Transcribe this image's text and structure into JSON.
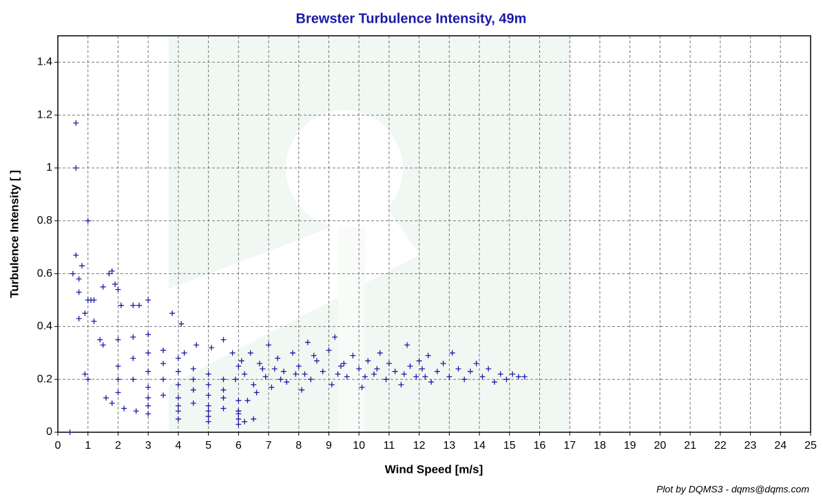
{
  "chart_data": {
    "type": "scatter",
    "title": "Brewster Turbulence Intensity, 49m",
    "x_label": "Wind Speed [m/s]",
    "y_label": "Turbulence Intensity [ ]",
    "footer": "Plot by DQMS3 - dqms@dqms.com",
    "color": "#1a1aa6",
    "marker": "plus",
    "grid": true,
    "xlim": [
      0,
      25
    ],
    "ylim": [
      0,
      1.5
    ],
    "xticks": [
      0,
      1,
      2,
      3,
      4,
      5,
      6,
      7,
      8,
      9,
      10,
      11,
      12,
      13,
      14,
      15,
      16,
      17,
      18,
      19,
      20,
      21,
      22,
      23,
      24,
      25
    ],
    "yticks": [
      0,
      0.2,
      0.4,
      0.6,
      0.8,
      1,
      1.2,
      1.4
    ],
    "x": [
      0.6,
      0.6,
      1.0,
      0.6,
      0.5,
      0.7,
      0.8,
      0.7,
      0.7,
      0.9,
      0.9,
      1.0,
      1.0,
      1.1,
      1.2,
      1.2,
      1.4,
      1.5,
      1.7,
      1.8,
      1.9,
      2.0,
      2.1,
      2.5,
      2.7,
      3.0,
      3.8,
      4.1,
      0.4,
      3,
      4,
      5,
      6,
      2,
      3,
      4,
      5,
      6,
      2,
      3,
      4,
      5,
      6,
      1.5,
      2,
      2.5,
      3,
      3.5,
      4,
      4.5,
      5,
      5.5,
      6,
      2,
      2.5,
      3,
      3.5,
      4,
      4.5,
      5,
      5.5,
      6,
      2.5,
      3,
      3.5,
      4,
      4.5,
      5,
      5.5,
      3,
      3.5,
      4,
      4.5,
      5,
      5.5,
      1.6,
      1.8,
      2.2,
      2.6,
      4.2,
      4.6,
      5.1,
      5.5,
      5.8,
      6.0,
      6.2,
      6.4,
      6.5,
      6.7,
      6.9,
      7.0,
      7.1,
      7.3,
      7.5,
      7.6,
      7.8,
      8.0,
      8.1,
      8.3,
      8.4,
      8.6,
      8.8,
      9.0,
      9.1,
      9.2,
      9.4,
      9.6,
      9.8,
      10.0,
      10.1,
      10.3,
      10.5,
      10.7,
      10.9,
      11.0,
      11.2,
      11.4,
      11.6,
      11.7,
      11.9,
      12.1,
      12.3,
      12.4,
      12.6,
      12.8,
      13.0,
      13.1,
      13.3,
      13.5,
      13.7,
      13.9,
      14.1,
      14.3,
      14.5,
      14.7,
      14.9,
      15.1,
      15.3,
      15.5,
      6.6,
      7.2,
      7.9,
      8.5,
      9.5,
      10.6,
      11.5,
      12.0,
      12.2,
      8.2,
      9.3,
      10.2,
      6.8,
      7.4,
      5.9,
      6.1,
      6.3,
      6.0,
      6.5,
      6.2
    ],
    "values": [
      1.17,
      1.0,
      0.8,
      0.67,
      0.6,
      0.58,
      0.63,
      0.53,
      0.43,
      0.45,
      0.22,
      0.2,
      0.5,
      0.5,
      0.5,
      0.42,
      0.35,
      0.55,
      0.6,
      0.61,
      0.56,
      0.54,
      0.48,
      0.48,
      0.48,
      0.5,
      0.45,
      0.41,
      0.0,
      0.07,
      0.05,
      0.04,
      0.03,
      0.15,
      0.1,
      0.08,
      0.06,
      0.05,
      0.2,
      0.13,
      0.1,
      0.08,
      0.07,
      0.33,
      0.25,
      0.2,
      0.17,
      0.14,
      0.13,
      0.11,
      0.1,
      0.09,
      0.08,
      0.35,
      0.28,
      0.23,
      0.2,
      0.18,
      0.16,
      0.14,
      0.13,
      0.12,
      0.36,
      0.3,
      0.26,
      0.23,
      0.2,
      0.18,
      0.16,
      0.37,
      0.31,
      0.28,
      0.24,
      0.22,
      0.2,
      0.13,
      0.11,
      0.09,
      0.08,
      0.3,
      0.33,
      0.32,
      0.35,
      0.3,
      0.25,
      0.22,
      0.3,
      0.18,
      0.26,
      0.21,
      0.33,
      0.17,
      0.28,
      0.23,
      0.19,
      0.3,
      0.25,
      0.16,
      0.34,
      0.2,
      0.27,
      0.23,
      0.31,
      0.18,
      0.36,
      0.25,
      0.21,
      0.29,
      0.24,
      0.17,
      0.27,
      0.22,
      0.3,
      0.2,
      0.26,
      0.23,
      0.18,
      0.33,
      0.25,
      0.21,
      0.24,
      0.29,
      0.19,
      0.23,
      0.26,
      0.21,
      0.3,
      0.24,
      0.2,
      0.23,
      0.26,
      0.21,
      0.24,
      0.19,
      0.22,
      0.2,
      0.22,
      0.21,
      0.21,
      0.15,
      0.24,
      0.22,
      0.29,
      0.26,
      0.24,
      0.22,
      0.27,
      0.21,
      0.22,
      0.22,
      0.21,
      0.24,
      0.2,
      0.2,
      0.27,
      0.12,
      0.08,
      0.05,
      0.04
    ]
  }
}
